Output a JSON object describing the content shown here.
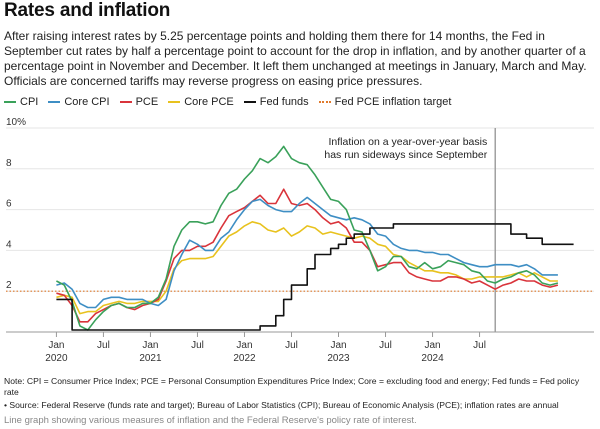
{
  "title": "Rates and inflation",
  "description": "After raising interest rates by 5.25 percentage points and holding them there for 14 months, the Fed in September cut rates by half a percentage point to account for the drop in inflation, and by another quarter of a percentage point in November and December. It left them unchanged at meetings in January, March and May. Officials are concerned tariffs may reverse progress on easing price pressures.",
  "note": "Note: CPI = Consumer Price Index; PCE = Personal Consumption Expenditures Price Index; Core = excluding food and energy; Fed funds = Fed policy rate",
  "source": "• Source: Federal Reserve (funds rate and target); Bureau of Labor Statistics (CPI); Bureau of Economic Analysis (PCE); inflation rates are annual",
  "alt_text": "Line graph showing various measures of inflation and the Federal Reserve's policy rate of interest.",
  "colors": {
    "cpi": "#3aa15a",
    "core_cpi": "#3e8ec4",
    "pce": "#d9343b",
    "core_pce": "#e8c21e",
    "fed_funds": "#111111",
    "target": "#e07a2c"
  },
  "chart_data": {
    "type": "line",
    "x_unit": "month",
    "x_start": "2020-01",
    "xlabels": [
      {
        "label": "Jan\n2020",
        "month": "2020-01"
      },
      {
        "label": "Jul",
        "month": "2020-07"
      },
      {
        "label": "Jan\n2021",
        "month": "2021-01"
      },
      {
        "label": "Jul",
        "month": "2021-07"
      },
      {
        "label": "Jan\n2022",
        "month": "2022-01"
      },
      {
        "label": "Jul",
        "month": "2022-07"
      },
      {
        "label": "Jan\n2023",
        "month": "2023-01"
      },
      {
        "label": "Jul",
        "month": "2023-07"
      },
      {
        "label": "Jan\n2024",
        "month": "2024-01"
      },
      {
        "label": "Jul",
        "month": "2024-07"
      }
    ],
    "yticks": [
      "10%",
      "8",
      "6",
      "4",
      "2"
    ],
    "ylim": [
      0,
      10
    ],
    "annotation": "Inflation on a year-over-year basis\nhas run sideways since September",
    "annotation_month": "2024-09",
    "target_value": 2,
    "series": [
      {
        "name": "CPI",
        "key": "cpi",
        "start": "2020-01",
        "values": [
          2.5,
          2.3,
          1.5,
          0.3,
          0.1,
          0.6,
          1.0,
          1.3,
          1.4,
          1.2,
          1.2,
          1.4,
          1.4,
          1.7,
          2.6,
          4.2,
          5.0,
          5.4,
          5.4,
          5.3,
          5.4,
          6.2,
          6.8,
          7.0,
          7.5,
          7.9,
          8.5,
          8.3,
          8.6,
          9.1,
          8.5,
          8.3,
          8.2,
          7.7,
          7.1,
          6.5,
          6.4,
          6.0,
          5.0,
          4.9,
          4.0,
          3.0,
          3.2,
          3.7,
          3.7,
          3.2,
          3.1,
          3.4,
          3.1,
          3.2,
          3.5,
          3.4,
          3.3,
          3.0,
          2.9,
          2.5,
          2.4,
          2.6,
          2.7,
          2.9,
          3.0,
          2.8,
          2.4,
          2.3,
          2.4
        ]
      },
      {
        "name": "Core CPI",
        "key": "core_cpi",
        "start": "2020-01",
        "values": [
          2.3,
          2.4,
          2.1,
          1.4,
          1.2,
          1.2,
          1.6,
          1.7,
          1.7,
          1.6,
          1.6,
          1.6,
          1.4,
          1.3,
          1.6,
          3.0,
          3.8,
          4.5,
          4.3,
          4.0,
          4.0,
          4.6,
          4.9,
          5.5,
          6.0,
          6.4,
          6.5,
          6.2,
          6.0,
          5.9,
          5.9,
          6.3,
          6.6,
          6.3,
          6.0,
          5.7,
          5.6,
          5.5,
          5.6,
          5.5,
          5.3,
          4.8,
          4.7,
          4.3,
          4.1,
          4.0,
          4.0,
          3.9,
          3.9,
          3.8,
          3.8,
          3.6,
          3.4,
          3.3,
          3.2,
          3.2,
          3.3,
          3.3,
          3.3,
          3.2,
          3.3,
          3.1,
          2.8,
          2.8,
          2.8
        ]
      },
      {
        "name": "PCE",
        "key": "pce",
        "start": "2020-01",
        "values": [
          1.9,
          1.8,
          1.3,
          0.5,
          0.5,
          0.9,
          1.1,
          1.3,
          1.4,
          1.2,
          1.1,
          1.3,
          1.4,
          1.6,
          2.5,
          3.6,
          4.0,
          4.0,
          4.2,
          4.2,
          4.4,
          5.1,
          5.7,
          5.9,
          6.1,
          6.4,
          6.7,
          6.3,
          6.3,
          7.0,
          6.3,
          6.2,
          6.3,
          6.0,
          5.6,
          5.3,
          5.4,
          5.1,
          4.4,
          4.4,
          4.0,
          3.2,
          3.3,
          3.4,
          3.4,
          2.9,
          2.7,
          2.6,
          2.5,
          2.5,
          2.7,
          2.7,
          2.6,
          2.4,
          2.5,
          2.3,
          2.1,
          2.3,
          2.4,
          2.6,
          2.5,
          2.5,
          2.3,
          2.2,
          2.3
        ]
      },
      {
        "name": "Core PCE",
        "key": "core_pce",
        "start": "2020-01",
        "values": [
          1.7,
          1.8,
          1.7,
          0.9,
          1.0,
          1.0,
          1.3,
          1.4,
          1.5,
          1.4,
          1.4,
          1.5,
          1.5,
          1.5,
          2.0,
          3.1,
          3.5,
          3.6,
          3.6,
          3.6,
          3.7,
          4.2,
          4.7,
          4.9,
          5.2,
          5.4,
          5.3,
          5.0,
          4.9,
          5.1,
          4.7,
          4.9,
          5.2,
          5.1,
          4.8,
          4.9,
          4.8,
          4.7,
          4.6,
          4.7,
          4.6,
          4.3,
          4.2,
          3.8,
          3.7,
          3.4,
          3.2,
          3.0,
          3.0,
          2.9,
          2.9,
          2.8,
          2.6,
          2.6,
          2.7,
          2.7,
          2.7,
          2.7,
          2.8,
          2.9,
          2.7,
          2.9,
          2.7,
          2.5,
          2.5
        ]
      },
      {
        "name": "Fed funds",
        "key": "fed_funds",
        "step": true,
        "start": "2020-01",
        "values": [
          1.6,
          1.6,
          0.1,
          0.1,
          0.1,
          0.1,
          0.1,
          0.1,
          0.1,
          0.1,
          0.1,
          0.1,
          0.1,
          0.1,
          0.1,
          0.1,
          0.1,
          0.1,
          0.1,
          0.1,
          0.1,
          0.1,
          0.1,
          0.1,
          0.1,
          0.1,
          0.3,
          0.3,
          0.8,
          1.6,
          2.3,
          2.3,
          3.1,
          3.8,
          3.8,
          4.1,
          4.3,
          4.6,
          4.8,
          4.8,
          5.1,
          5.1,
          5.1,
          5.3,
          5.3,
          5.3,
          5.3,
          5.3,
          5.3,
          5.3,
          5.3,
          5.3,
          5.3,
          5.3,
          5.3,
          5.3,
          5.3,
          5.3,
          4.8,
          4.8,
          4.6,
          4.6,
          4.3,
          4.3,
          4.3,
          4.3,
          4.3
        ]
      },
      {
        "name": "Fed PCE inflation target",
        "key": "target",
        "constant": 2
      }
    ]
  }
}
